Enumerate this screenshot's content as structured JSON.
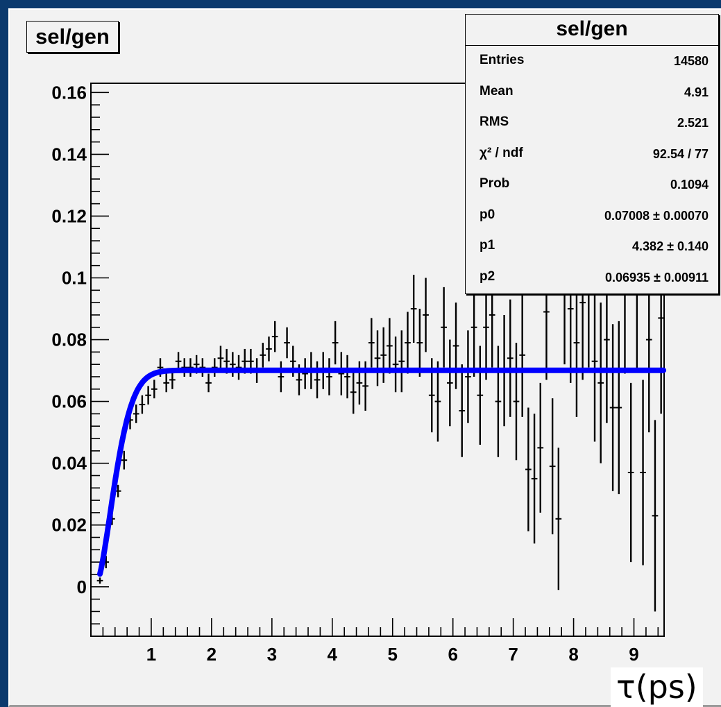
{
  "title_box": "sel/gen",
  "stats": {
    "title": "sel/gen",
    "rows": [
      {
        "label": "Entries",
        "value": "14580"
      },
      {
        "label": "Mean",
        "value": "4.91"
      },
      {
        "label": "RMS",
        "value": "2.521"
      },
      {
        "label": "χ² / ndf",
        "value": "92.54 / 77"
      },
      {
        "label": "Prob",
        "value": "0.1094"
      },
      {
        "label": "p0",
        "value": "0.07008 ± 0.00070"
      },
      {
        "label": "p1",
        "value": "4.382 ± 0.140"
      },
      {
        "label": "p2",
        "value": "0.06935 ± 0.00911"
      }
    ]
  },
  "chart_data": {
    "type": "scatter",
    "title": "sel/gen",
    "xlabel": "τ(ps)",
    "ylabel": "",
    "xlim": [
      0.0,
      9.5
    ],
    "ylim": [
      -0.016,
      0.163
    ],
    "xticks": [
      "1",
      "2",
      "3",
      "4",
      "5",
      "6",
      "7",
      "8",
      "9"
    ],
    "yticks": [
      "0",
      "0.02",
      "0.04",
      "0.06",
      "0.08",
      "0.1",
      "0.12",
      "0.14",
      "0.16"
    ],
    "bin_width": 0.1,
    "series": [
      {
        "kind": "histogram_points_with_errors",
        "x": [
          0.15,
          0.25,
          0.35,
          0.45,
          0.55,
          0.65,
          0.75,
          0.85,
          0.95,
          1.05,
          1.15,
          1.25,
          1.35,
          1.45,
          1.55,
          1.65,
          1.75,
          1.85,
          1.95,
          2.05,
          2.15,
          2.25,
          2.35,
          2.45,
          2.55,
          2.65,
          2.75,
          2.85,
          2.95,
          3.05,
          3.15,
          3.25,
          3.35,
          3.45,
          3.55,
          3.65,
          3.75,
          3.85,
          3.95,
          4.05,
          4.15,
          4.25,
          4.35,
          4.45,
          4.55,
          4.65,
          4.75,
          4.85,
          4.95,
          5.05,
          5.15,
          5.25,
          5.35,
          5.45,
          5.55,
          5.65,
          5.75,
          5.85,
          5.95,
          6.05,
          6.15,
          6.25,
          6.35,
          6.45,
          6.55,
          6.65,
          6.75,
          6.85,
          6.95,
          7.05,
          7.15,
          7.25,
          7.35,
          7.45,
          7.55,
          7.65,
          7.75,
          7.85,
          7.95,
          8.05,
          8.15,
          8.25,
          8.35,
          8.45,
          8.55,
          8.65,
          8.75,
          8.85,
          8.95,
          9.05,
          9.15,
          9.25,
          9.35,
          9.45
        ],
        "y": [
          0.002,
          0.008,
          0.022,
          0.031,
          0.041,
          0.054,
          0.056,
          0.059,
          0.062,
          0.064,
          0.071,
          0.066,
          0.067,
          0.073,
          0.071,
          0.071,
          0.072,
          0.071,
          0.066,
          0.071,
          0.074,
          0.073,
          0.072,
          0.071,
          0.073,
          0.073,
          0.07,
          0.075,
          0.077,
          0.081,
          0.068,
          0.079,
          0.073,
          0.067,
          0.069,
          0.07,
          0.067,
          0.07,
          0.068,
          0.079,
          0.069,
          0.068,
          0.063,
          0.066,
          0.065,
          0.079,
          0.074,
          0.075,
          0.078,
          0.072,
          0.073,
          0.079,
          0.09,
          0.079,
          0.088,
          0.062,
          0.06,
          0.084,
          0.066,
          0.078,
          0.057,
          0.068,
          0.084,
          0.062,
          0.084,
          0.088,
          0.06,
          0.07,
          0.074,
          0.06,
          0.075,
          0.038,
          0.035,
          0.045,
          0.089,
          0.039,
          0.022,
          0.095,
          0.09,
          0.079,
          0.092,
          0.096,
          0.073,
          0.066,
          0.08,
          0.058,
          0.058,
          0.097,
          0.037,
          0.099,
          0.037,
          0.08,
          0.023,
          0.087
        ],
        "err": [
          0.001,
          0.002,
          0.002,
          0.002,
          0.003,
          0.003,
          0.003,
          0.003,
          0.003,
          0.003,
          0.003,
          0.003,
          0.003,
          0.003,
          0.003,
          0.003,
          0.003,
          0.003,
          0.003,
          0.003,
          0.004,
          0.004,
          0.004,
          0.004,
          0.004,
          0.004,
          0.004,
          0.004,
          0.004,
          0.005,
          0.005,
          0.005,
          0.005,
          0.005,
          0.005,
          0.006,
          0.006,
          0.006,
          0.006,
          0.007,
          0.007,
          0.007,
          0.007,
          0.007,
          0.008,
          0.008,
          0.009,
          0.009,
          0.009,
          0.009,
          0.01,
          0.01,
          0.011,
          0.011,
          0.012,
          0.012,
          0.013,
          0.013,
          0.014,
          0.014,
          0.015,
          0.015,
          0.016,
          0.016,
          0.017,
          0.017,
          0.018,
          0.018,
          0.019,
          0.019,
          0.02,
          0.02,
          0.021,
          0.021,
          0.022,
          0.022,
          0.023,
          0.023,
          0.024,
          0.024,
          0.025,
          0.025,
          0.026,
          0.026,
          0.027,
          0.027,
          0.028,
          0.028,
          0.029,
          0.029,
          0.03,
          0.03,
          0.031,
          0.031
        ],
        "color": "#000000"
      },
      {
        "kind": "fit_curve",
        "model": "p0*erf((x-p2)/(p1*... )) saturating function",
        "p0": 0.07008,
        "p1": 4.382,
        "p2": 0.06935,
        "color": "#0000ff"
      }
    ],
    "grid": false,
    "legend": "top-right stats box"
  }
}
